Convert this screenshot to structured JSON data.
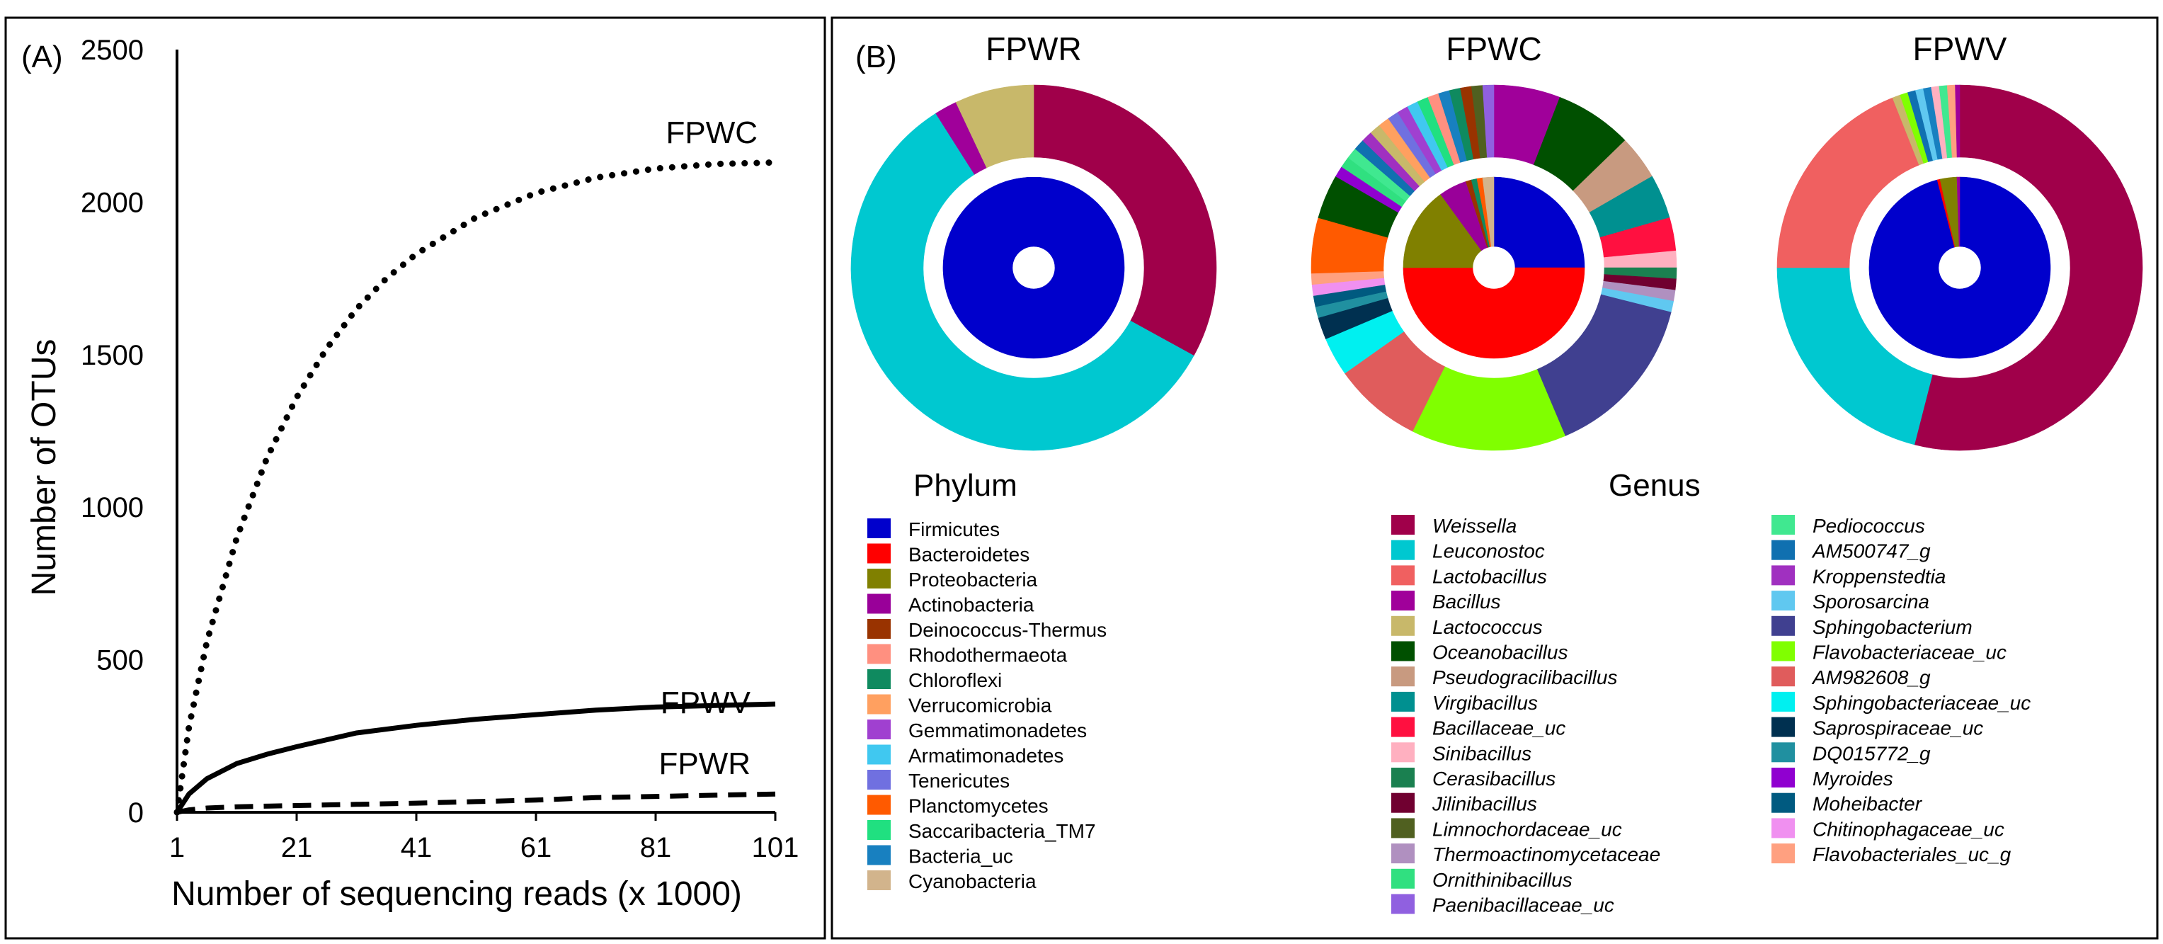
{
  "colors": {
    "Firmicutes": "#0000cc",
    "Bacteroidetes": "#ff0000",
    "Proteobacteria": "#808000",
    "Actinobacteria": "#990099",
    "Deinococcus-Thermus": "#993300",
    "Rhodothermaeota": "#ff9080",
    "Chloroflexi": "#0f8a5f",
    "Verrucomicrobia": "#ffa060",
    "Gemmatimonadetes": "#a040d0",
    "Armatimonadetes": "#40c8f0",
    "Tenericutes": "#7070e0",
    "Planctomycetes": "#ff5a00",
    "Saccaribacteria_TM7": "#20e080",
    "Bacteria_uc": "#1880c0",
    "Cyanobacteria": "#d2b48c",
    "Weissella": "#a0004a",
    "Leuconostoc": "#00c8d0",
    "Lactobacillus": "#f06060",
    "Bacillus": "#a0009a",
    "Lactococcus": "#c8b86a",
    "Oceanobacillus": "#005000",
    "Pseudogracilibacillus": "#c89a80",
    "Virgibacillus": "#009090",
    "Bacillaceae_uc": "#ff1040",
    "Sinibacillus": "#ffb0c0",
    "Cerasibacillus": "#1a8050",
    "Jilinibacillus": "#700030",
    "Limnochordaceae_uc": "#506020",
    "Thermoactinomycetaceae": "#b090c0",
    "Ornithinibacillus": "#30e080",
    "Paenibacillaceae_uc": "#9060e0",
    "Pediococcus": "#40e890",
    "AM500747_g": "#1070b0",
    "Kroppenstedtia": "#a030c0",
    "Sporosarcina": "#60c8f0",
    "Sphingobacterium": "#404090",
    "Flavobacteriaceae_uc": "#80ff00",
    "AM982608_g": "#e05c5c",
    "Sphingobacteriaceae_uc": "#00f0f0",
    "Saprospiraceae_uc": "#003050",
    "DQ015772_g": "#2090a0",
    "Myroides": "#9000d0",
    "Moheibacter": "#005a80",
    "Chitinophagaceae_uc": "#f090f0",
    "Flavobacteriales_uc_g": "#ffa080"
  },
  "chart_data": [
    {
      "type": "line",
      "panel_label": "(A)",
      "xlabel": "Number of sequencing reads (x 1000)",
      "ylabel": "Number of OTUs",
      "xlim": [
        1,
        101
      ],
      "ylim": [
        0,
        2500
      ],
      "xticks": [
        1,
        21,
        41,
        61,
        81,
        101
      ],
      "yticks": [
        0,
        500,
        1000,
        1500,
        2000,
        2500
      ],
      "series": [
        {
          "name": "FPWC",
          "style": "dotted",
          "x": [
            1,
            3,
            6,
            11,
            16,
            21,
            26,
            31,
            36,
            41,
            51,
            61,
            71,
            81,
            91,
            101
          ],
          "y": [
            0,
            280,
            560,
            900,
            1160,
            1360,
            1520,
            1650,
            1750,
            1830,
            1950,
            2030,
            2080,
            2110,
            2125,
            2130
          ]
        },
        {
          "name": "FPWV",
          "style": "solid",
          "x": [
            1,
            3,
            6,
            11,
            16,
            21,
            31,
            41,
            51,
            61,
            71,
            81,
            91,
            101
          ],
          "y": [
            0,
            60,
            110,
            160,
            190,
            215,
            260,
            285,
            305,
            320,
            335,
            345,
            350,
            355
          ]
        },
        {
          "name": "FPWR",
          "style": "dashed",
          "x": [
            1,
            3,
            6,
            11,
            21,
            31,
            41,
            51,
            61,
            71,
            81,
            91,
            101
          ],
          "y": [
            0,
            8,
            14,
            18,
            22,
            26,
            30,
            35,
            40,
            48,
            52,
            56,
            60
          ]
        }
      ]
    },
    {
      "type": "pie",
      "panel_label": "(B)",
      "title": "FPWR",
      "inner_ring_phylum": [
        {
          "label": "Firmicutes",
          "value": 100
        }
      ],
      "outer_ring_genus": [
        {
          "label": "Weissella",
          "value": 33
        },
        {
          "label": "Leuconostoc",
          "value": 58
        },
        {
          "label": "Bacillus",
          "value": 2
        },
        {
          "label": "Lactococcus",
          "value": 7
        }
      ]
    },
    {
      "type": "pie",
      "title": "FPWC",
      "inner_ring_phylum": [
        {
          "label": "Firmicutes",
          "value": 25
        },
        {
          "label": "Bacteroidetes",
          "value": 50
        },
        {
          "label": "Proteobacteria",
          "value": 15
        },
        {
          "label": "Actinobacteria",
          "value": 5
        },
        {
          "label": "Deinococcus-Thermus",
          "value": 1
        },
        {
          "label": "Chloroflexi",
          "value": 1
        },
        {
          "label": "Planctomycetes",
          "value": 1
        },
        {
          "label": "Cyanobacteria",
          "value": 2
        }
      ],
      "outer_ring_genus": [
        {
          "label": "Bacillus",
          "value": 6
        },
        {
          "label": "Oceanobacillus",
          "value": 7
        },
        {
          "label": "Pseudogracilibacillus",
          "value": 4
        },
        {
          "label": "Virgibacillus",
          "value": 4
        },
        {
          "label": "Bacillaceae_uc",
          "value": 3
        },
        {
          "label": "Sinibacillus",
          "value": 1.5
        },
        {
          "label": "Cerasibacillus",
          "value": 1
        },
        {
          "label": "Jilinibacillus",
          "value": 1
        },
        {
          "label": "Thermoactinomycetaceae",
          "value": 1
        },
        {
          "label": "Sporosarcina",
          "value": 1
        },
        {
          "label": "Sphingobacterium",
          "value": 15
        },
        {
          "label": "Flavobacteriaceae_uc",
          "value": 14
        },
        {
          "label": "AM982608_g",
          "value": 8
        },
        {
          "label": "Sphingobacteriaceae_uc",
          "value": 3.5
        },
        {
          "label": "Saprospiraceae_uc",
          "value": 2
        },
        {
          "label": "DQ015772_g",
          "value": 1
        },
        {
          "label": "Moheibacter",
          "value": 1
        },
        {
          "label": "Chitinophagaceae_uc",
          "value": 1
        },
        {
          "label": "Flavobacteriales_uc_g",
          "value": 1
        },
        {
          "label": "Planctomycetes",
          "value": 5
        },
        {
          "label": "Oceanobacillus",
          "value": 4
        },
        {
          "label": "Myroides",
          "value": 1
        },
        {
          "label": "Ornithinibacillus",
          "value": 1
        },
        {
          "label": "Pediococcus",
          "value": 1
        },
        {
          "label": "AM500747_g",
          "value": 1
        },
        {
          "label": "Kroppenstedtia",
          "value": 1
        },
        {
          "label": "Lactococcus",
          "value": 1
        },
        {
          "label": "Verrucomicrobia",
          "value": 1
        },
        {
          "label": "Tenericutes",
          "value": 1
        },
        {
          "label": "Gemmatimonadetes",
          "value": 1
        },
        {
          "label": "Armatimonadetes",
          "value": 1
        },
        {
          "label": "Saccaribacteria_TM7",
          "value": 1
        },
        {
          "label": "Rhodothermaeota",
          "value": 1
        },
        {
          "label": "Bacteria_uc",
          "value": 1
        },
        {
          "label": "Chloroflexi",
          "value": 1
        },
        {
          "label": "Deinococcus-Thermus",
          "value": 1
        },
        {
          "label": "Limnochordaceae_uc",
          "value": 1
        },
        {
          "label": "Paenibacillaceae_uc",
          "value": 1
        }
      ]
    },
    {
      "type": "pie",
      "title": "FPWV",
      "inner_ring_phylum": [
        {
          "label": "Firmicutes",
          "value": 96
        },
        {
          "label": "Bacteroidetes",
          "value": 0.5
        },
        {
          "label": "Proteobacteria",
          "value": 3
        },
        {
          "label": "Actinobacteria",
          "value": 0.5
        }
      ],
      "outer_ring_genus": [
        {
          "label": "Weissella",
          "value": 54
        },
        {
          "label": "Leuconostoc",
          "value": 21
        },
        {
          "label": "Lactobacillus",
          "value": 19
        },
        {
          "label": "Lactococcus",
          "value": 0.7
        },
        {
          "label": "Flavobacteriaceae_uc",
          "value": 0.7
        },
        {
          "label": "AM500747_g",
          "value": 0.7
        },
        {
          "label": "Sporosarcina",
          "value": 0.7
        },
        {
          "label": "Bacteria_uc",
          "value": 0.7
        },
        {
          "label": "Sinibacillus",
          "value": 0.7
        },
        {
          "label": "Pediococcus",
          "value": 0.7
        },
        {
          "label": "Flavobacteriales_uc_g",
          "value": 0.7
        },
        {
          "label": "Bacillus",
          "value": 0.4
        }
      ]
    }
  ],
  "legend": {
    "phylum_title": "Phylum",
    "genus_title": "Genus",
    "phylum": [
      "Firmicutes",
      "Bacteroidetes",
      "Proteobacteria",
      "Actinobacteria",
      "Deinococcus-Thermus",
      "Rhodothermaeota",
      "Chloroflexi",
      "Verrucomicrobia",
      "Gemmatimonadetes",
      "Armatimonadetes",
      "Tenericutes",
      "Planctomycetes",
      "Saccaribacteria_TM7",
      "Bacteria_uc",
      "Cyanobacteria"
    ],
    "genus_col1": [
      "Weissella",
      "Leuconostoc",
      "Lactobacillus",
      "Bacillus",
      "Lactococcus",
      "Oceanobacillus",
      "Pseudogracilibacillus",
      "Virgibacillus",
      "Bacillaceae_uc",
      "Sinibacillus",
      "Cerasibacillus",
      "Jilinibacillus",
      "Limnochordaceae_uc",
      "Thermoactinomycetaceae",
      "Ornithinibacillus",
      "Paenibacillaceae_uc"
    ],
    "genus_col2": [
      "Pediococcus",
      "AM500747_g",
      "Kroppenstedtia",
      "Sporosarcina",
      "Sphingobacterium",
      "Flavobacteriaceae_uc",
      "AM982608_g",
      "Sphingobacteriaceae_uc",
      "Saprospiraceae_uc",
      "DQ015772_g",
      "Myroides",
      "Moheibacter",
      "Chitinophagaceae_uc",
      "Flavobacteriales_uc_g"
    ]
  }
}
